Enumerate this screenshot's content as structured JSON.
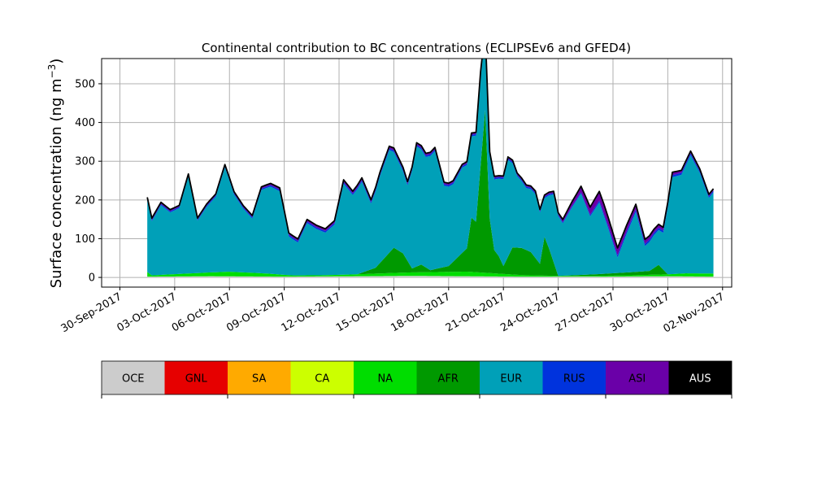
{
  "chart_data": {
    "type": "area",
    "stacked": true,
    "title": "Continental contribution to BC concentrations (ECLIPSEv6 and GFED4)",
    "ylabel_main": "Surface concentration (ng m",
    "ylabel_sup": "−3",
    "ylabel_close": ")",
    "xlabel": "",
    "x_range": [
      "2017-09-29T00:00",
      "2017-11-02T12:00"
    ],
    "ylim": [
      -25,
      565
    ],
    "yticks": [
      0,
      100,
      200,
      300,
      400,
      500
    ],
    "ytick_labels": [
      "0",
      "100",
      "200",
      "300",
      "400",
      "500"
    ],
    "xticks": [
      "2017-09-30",
      "2017-10-03",
      "2017-10-06",
      "2017-10-09",
      "2017-10-12",
      "2017-10-15",
      "2017-10-18",
      "2017-10-21",
      "2017-10-24",
      "2017-10-27",
      "2017-10-30",
      "2017-11-02"
    ],
    "xtick_labels": [
      "30-Sep-2017",
      "03-Oct-2017",
      "06-Oct-2017",
      "09-Oct-2017",
      "12-Oct-2017",
      "15-Oct-2017",
      "18-Oct-2017",
      "21-Oct-2017",
      "24-Oct-2017",
      "27-Oct-2017",
      "30-Oct-2017",
      "02-Nov-2017"
    ],
    "grid": true,
    "legend_position": "colorbar below plot",
    "total_line_color": "#000000",
    "series": [
      {
        "name": "OCE",
        "color": "#cccccc",
        "x": [
          "2017-10-01T12:00",
          "2017-10-05T00:00",
          "2017-10-09T00:00",
          "2017-10-13T00:00",
          "2017-10-16T00:00",
          "2017-10-19T00:00",
          "2017-10-22T00:00",
          "2017-10-26T00:00",
          "2017-10-30T00:00",
          "2017-11-01T12:00"
        ],
        "values": [
          2,
          3,
          2,
          3,
          4,
          3,
          2,
          2,
          3,
          2
        ]
      },
      {
        "name": "GNL",
        "color": "#e60000",
        "x": [
          "2017-10-01T12:00",
          "2017-11-01T12:00"
        ],
        "values": [
          0,
          0
        ]
      },
      {
        "name": "SA",
        "color": "#ffaa00",
        "x": [
          "2017-10-01T12:00",
          "2017-11-01T12:00"
        ],
        "values": [
          0,
          0
        ]
      },
      {
        "name": "CA",
        "color": "#ccff00",
        "x": [
          "2017-10-01T12:00",
          "2017-11-01T12:00"
        ],
        "values": [
          0,
          0
        ]
      },
      {
        "name": "NA",
        "color": "#00dd00",
        "x": [
          "2017-10-01T12:00",
          "2017-10-01T18:00",
          "2017-10-02T12:00",
          "2017-10-04T00:00",
          "2017-10-06T00:00",
          "2017-10-08T00:00",
          "2017-10-09T12:00",
          "2017-10-11T00:00",
          "2017-10-13T00:00",
          "2017-10-15T00:00",
          "2017-10-17T00:00",
          "2017-10-19T00:00",
          "2017-10-20T12:00",
          "2017-10-22T00:00",
          "2017-10-24T00:00",
          "2017-10-26T00:00",
          "2017-10-28T00:00",
          "2017-10-30T00:00",
          "2017-10-31T00:00",
          "2017-11-01T12:00"
        ],
        "values": [
          12,
          3,
          5,
          8,
          12,
          8,
          3,
          3,
          5,
          8,
          10,
          12,
          8,
          4,
          2,
          2,
          3,
          5,
          8,
          8
        ]
      },
      {
        "name": "AFR",
        "color": "#009900",
        "x": [
          "2017-10-01T12:00",
          "2017-10-13T00:00",
          "2017-10-14T00:00",
          "2017-10-15T00:00",
          "2017-10-15T12:00",
          "2017-10-16T00:00",
          "2017-10-16T12:00",
          "2017-10-17T00:00",
          "2017-10-18T00:00",
          "2017-10-19T00:00",
          "2017-10-19T06:00",
          "2017-10-19T12:00",
          "2017-10-20T00:00",
          "2017-10-20T06:00",
          "2017-10-20T12:00",
          "2017-10-20T18:00",
          "2017-10-21T00:00",
          "2017-10-21T12:00",
          "2017-10-22T00:00",
          "2017-10-22T12:00",
          "2017-10-23T00:00",
          "2017-10-23T06:00",
          "2017-10-23T12:00",
          "2017-10-24T00:00",
          "2017-10-29T00:00",
          "2017-10-29T12:00",
          "2017-10-30T00:00",
          "2017-11-01T12:00"
        ],
        "values": [
          0,
          0,
          15,
          65,
          50,
          10,
          20,
          5,
          15,
          60,
          140,
          130,
          420,
          140,
          60,
          45,
          20,
          70,
          70,
          60,
          30,
          100,
          70,
          0,
          10,
          25,
          0,
          0
        ]
      },
      {
        "name": "EUR",
        "color": "#00a0b8",
        "x": [
          "2017-10-01T12:00",
          "2017-10-01T18:00",
          "2017-10-02T06:00",
          "2017-10-02T18:00",
          "2017-10-03T06:00",
          "2017-10-03T18:00",
          "2017-10-04T06:00",
          "2017-10-04T18:00",
          "2017-10-05T06:00",
          "2017-10-05T18:00",
          "2017-10-06T06:00",
          "2017-10-06T18:00",
          "2017-10-07T06:00",
          "2017-10-07T18:00",
          "2017-10-08T06:00",
          "2017-10-08T18:00",
          "2017-10-09T06:00",
          "2017-10-09T18:00",
          "2017-10-10T06:00",
          "2017-10-10T18:00",
          "2017-10-11T06:00",
          "2017-10-11T18:00",
          "2017-10-12T06:00",
          "2017-10-12T18:00",
          "2017-10-13T06:00",
          "2017-10-13T18:00",
          "2017-10-14T06:00",
          "2017-10-14T18:00",
          "2017-10-15T06:00",
          "2017-10-15T18:00",
          "2017-10-16T06:00",
          "2017-10-16T18:00",
          "2017-10-17T06:00",
          "2017-10-17T18:00",
          "2017-10-18T06:00",
          "2017-10-18T18:00",
          "2017-10-19T06:00",
          "2017-10-19T18:00",
          "2017-10-20T06:00",
          "2017-10-20T18:00",
          "2017-10-21T06:00",
          "2017-10-21T18:00",
          "2017-10-22T06:00",
          "2017-10-22T18:00",
          "2017-10-23T06:00",
          "2017-10-23T18:00",
          "2017-10-24T06:00",
          "2017-10-24T18:00",
          "2017-10-25T06:00",
          "2017-10-25T18:00",
          "2017-10-26T06:00",
          "2017-10-26T18:00",
          "2017-10-27T06:00",
          "2017-10-27T18:00",
          "2017-10-28T06:00",
          "2017-10-28T18:00",
          "2017-10-29T06:00",
          "2017-10-29T18:00",
          "2017-10-30T06:00",
          "2017-10-30T18:00",
          "2017-10-31T06:00",
          "2017-10-31T18:00",
          "2017-11-01T06:00",
          "2017-11-01T12:00"
        ],
        "values": [
          185,
          140,
          180,
          160,
          170,
          250,
          135,
          170,
          195,
          270,
          200,
          165,
          140,
          215,
          225,
          215,
          100,
          85,
          135,
          120,
          110,
          130,
          235,
          205,
          235,
          170,
          225,
          265,
          230,
          195,
          310,
          285,
          305,
          210,
          200,
          220,
          210,
          235,
          165,
          200,
          250,
          185,
          160,
          165,
          100,
          175,
          135,
          175,
          210,
          150,
          185,
          115,
          40,
          100,
          155,
          65,
          85,
          95,
          250,
          255,
          305,
          260,
          195,
          210
        ]
      },
      {
        "name": "RUS",
        "color": "#0033dd",
        "x": [
          "2017-10-01T12:00",
          "2017-10-05T00:00",
          "2017-10-10T00:00",
          "2017-10-15T00:00",
          "2017-10-20T00:00",
          "2017-10-25T00:00",
          "2017-10-27T00:00",
          "2017-10-29T00:00",
          "2017-10-31T00:00",
          "2017-11-01T12:00"
        ],
        "values": [
          3,
          3,
          4,
          4,
          4,
          3,
          6,
          6,
          5,
          4
        ]
      },
      {
        "name": "ASI",
        "color": "#6a00a8",
        "x": [
          "2017-10-01T12:00",
          "2017-10-03T00:00",
          "2017-10-06T00:00",
          "2017-10-09T00:00",
          "2017-10-12T00:00",
          "2017-10-15T00:00",
          "2017-10-18T00:00",
          "2017-10-21T00:00",
          "2017-10-24T00:00",
          "2017-10-26T00:00",
          "2017-10-26T12:00",
          "2017-10-27T00:00",
          "2017-10-28T00:00",
          "2017-10-29T00:00",
          "2017-10-30T00:00",
          "2017-10-31T00:00",
          "2017-11-01T12:00"
        ],
        "values": [
          5,
          4,
          4,
          5,
          6,
          6,
          5,
          4,
          5,
          22,
          25,
          20,
          15,
          10,
          8,
          6,
          5
        ]
      },
      {
        "name": "AUS",
        "color": "#000000",
        "x": [
          "2017-10-01T12:00",
          "2017-11-01T12:00"
        ],
        "values": [
          0,
          0
        ]
      }
    ]
  }
}
